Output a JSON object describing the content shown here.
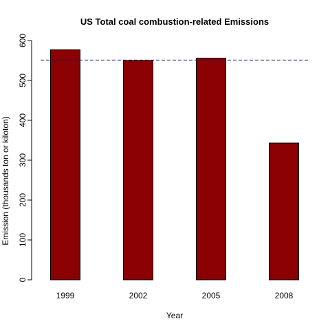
{
  "chart_data": {
    "type": "bar",
    "title": "US Total coal combustion-related Emissions",
    "xlabel": "Year",
    "ylabel": "Emission (thousands ton or kiloton)",
    "categories": [
      "1999",
      "2002",
      "2005",
      "2008"
    ],
    "values": [
      577,
      550,
      556,
      343
    ],
    "ylim": [
      0,
      600
    ],
    "yticks": [
      "0",
      "100",
      "200",
      "300",
      "400",
      "500",
      "600"
    ],
    "reference_line": {
      "value": 551,
      "style": "dashed"
    },
    "grid": false,
    "colors": {
      "bar_fill": "#8b0000",
      "bar_stroke": "#000000",
      "reference_line": "#191970",
      "axis": "#000000"
    }
  }
}
